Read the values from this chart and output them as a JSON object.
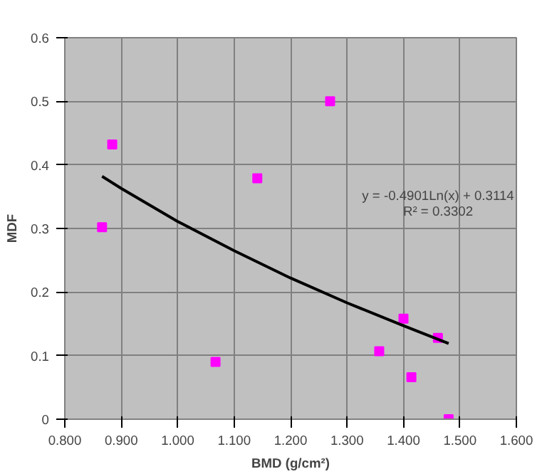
{
  "chart_data": {
    "type": "scatter",
    "xlabel": "BMD (g/cm²)",
    "ylabel": "MDF",
    "x": [
      0.866,
      0.884,
      1.067,
      1.141,
      1.27,
      1.357,
      1.4,
      1.414,
      1.461,
      1.48
    ],
    "series": [
      {
        "color": "#ff00ff",
        "marker": "square",
        "values": [
          0.302,
          0.432,
          0.09,
          0.379,
          0.5,
          0.107,
          0.158,
          0.066,
          0.128,
          0.0
        ]
      },
      {
        "type": "line",
        "color": "#000000",
        "line_style": "solid",
        "marker": "none",
        "x": [
          0.866,
          0.9,
          1.0,
          1.1,
          1.2,
          1.3,
          1.4,
          1.48
        ],
        "values": [
          0.382,
          0.363,
          0.311,
          0.265,
          0.222,
          0.183,
          0.147,
          0.119
        ]
      }
    ],
    "xlim": [
      0.8,
      1.6
    ],
    "ylim": [
      0,
      0.6
    ],
    "xticks": [
      {
        "value": 0.8,
        "label": "0.800"
      },
      {
        "value": 0.9,
        "label": "0.900"
      },
      {
        "value": 1.0,
        "label": "1.000"
      },
      {
        "value": 1.1,
        "label": "1.100"
      },
      {
        "value": 1.2,
        "label": "1.200"
      },
      {
        "value": 1.3,
        "label": "1.300"
      },
      {
        "value": 1.4,
        "label": "1.400"
      },
      {
        "value": 1.5,
        "label": "1.500"
      },
      {
        "value": 1.6,
        "label": "1.600"
      }
    ],
    "yticks": [
      0,
      0.1,
      0.2,
      0.3,
      0.4,
      0.5,
      0.6
    ],
    "grid": true,
    "annotations": [
      "y = -0.4901Ln(x) + 0.3114",
      "R² = 0.3302"
    ]
  }
}
